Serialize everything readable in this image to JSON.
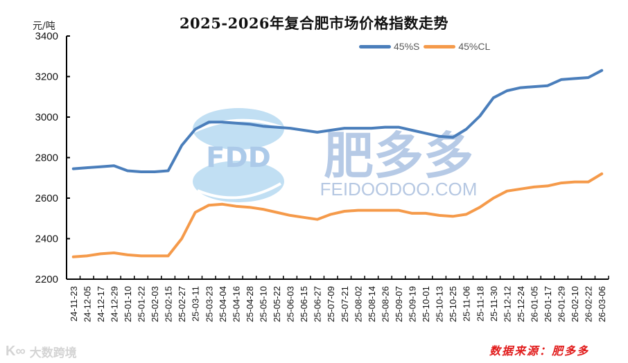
{
  "header": {
    "title": "2025-2026年复合肥市场价格指数走势",
    "unit": "元/吨"
  },
  "legend": {
    "items": [
      {
        "label": "45%S",
        "color": "#4a7ebb"
      },
      {
        "label": "45%CL",
        "color": "#f59a4a"
      }
    ]
  },
  "watermark": {
    "logo_text": "FDD",
    "brand_cn": "肥多多",
    "brand_url": "FEIDOODOO.COM",
    "bottom_left": "大数跨境"
  },
  "footer": {
    "source": "数据来源：肥多多"
  },
  "chart_data": {
    "type": "line",
    "title": "2025-2026年复合肥市场价格指数走势",
    "xlabel": "",
    "ylabel": "元/吨",
    "ylim": [
      2200,
      3400
    ],
    "yticks": [
      2200,
      2400,
      2600,
      2800,
      3000,
      3200,
      3400
    ],
    "grid": false,
    "legend_position": "top-right",
    "categories": [
      "24-11-23",
      "24-12-05",
      "24-12-17",
      "24-12-29",
      "25-01-10",
      "25-01-22",
      "25-02-03",
      "25-02-15",
      "25-02-27",
      "25-03-11",
      "25-03-23",
      "25-04-04",
      "25-04-16",
      "25-04-28",
      "25-05-10",
      "25-05-22",
      "25-06-03",
      "25-06-15",
      "25-06-27",
      "25-07-09",
      "25-07-21",
      "25-08-02",
      "25-08-14",
      "25-08-26",
      "25-09-07",
      "25-09-19",
      "25-10-01",
      "25-10-13",
      "25-10-25",
      "25-11-06",
      "25-11-18",
      "25-11-30",
      "25-12-12",
      "25-12-24",
      "26-01-05",
      "26-01-17",
      "26-01-29",
      "26-02-10",
      "26-02-22",
      "26-03-06"
    ],
    "series": [
      {
        "name": "45%S",
        "color": "#4a7ebb",
        "values": [
          2745,
          2750,
          2755,
          2760,
          2735,
          2730,
          2730,
          2735,
          2860,
          2940,
          2975,
          2975,
          2970,
          2965,
          2955,
          2950,
          2945,
          2935,
          2925,
          2935,
          2945,
          2945,
          2945,
          2950,
          2950,
          2935,
          2920,
          2905,
          2900,
          2940,
          3005,
          3095,
          3130,
          3145,
          3150,
          3155,
          3185,
          3190,
          3195,
          3230
        ]
      },
      {
        "name": "45%CL",
        "color": "#f59a4a",
        "values": [
          2310,
          2315,
          2325,
          2330,
          2320,
          2315,
          2315,
          2315,
          2400,
          2530,
          2565,
          2570,
          2560,
          2555,
          2545,
          2530,
          2515,
          2505,
          2495,
          2520,
          2535,
          2540,
          2540,
          2540,
          2540,
          2525,
          2525,
          2515,
          2510,
          2520,
          2555,
          2600,
          2635,
          2645,
          2655,
          2660,
          2675,
          2680,
          2680,
          2720
        ]
      }
    ]
  }
}
